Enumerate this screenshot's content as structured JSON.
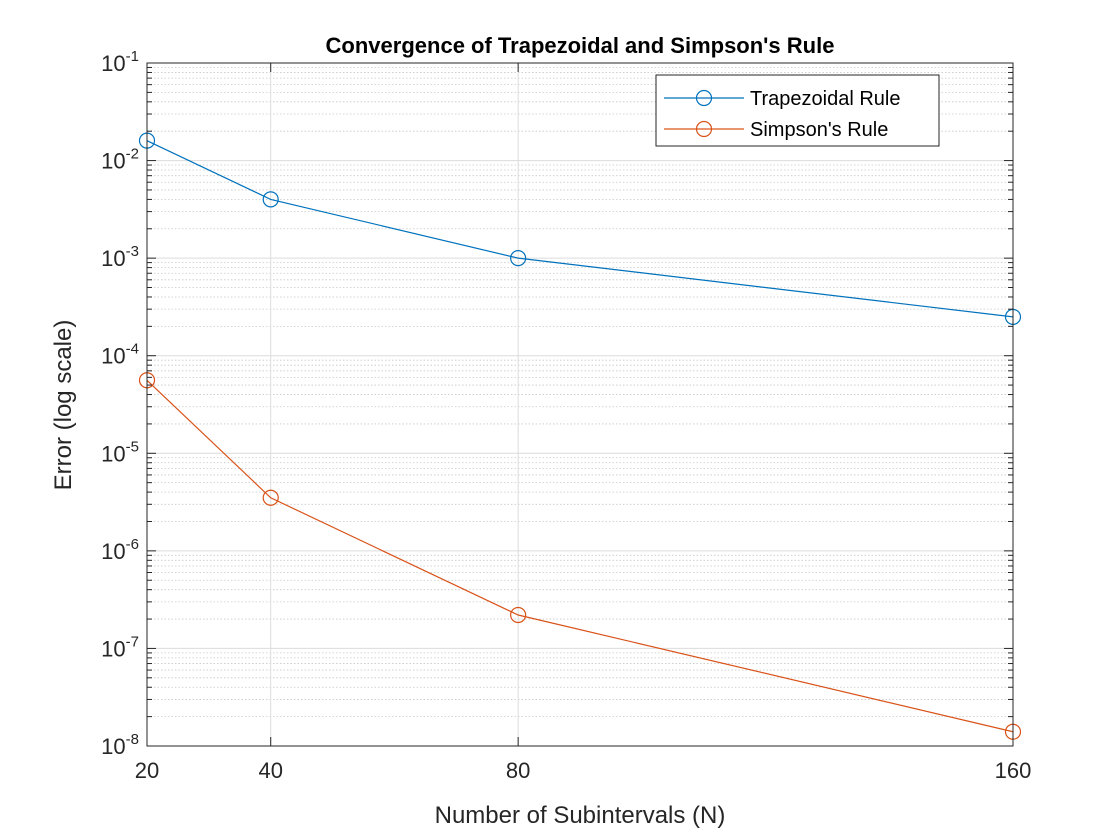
{
  "chart_data": {
    "type": "line",
    "title": "Convergence of Trapezoidal and Simpson's Rule",
    "xlabel": "Number of Subintervals (N)",
    "ylabel": "Error (log scale)",
    "x_scale": "linear",
    "y_scale": "log",
    "xlim": [
      20,
      160
    ],
    "ylim": [
      1e-08,
      0.1
    ],
    "x_ticks": [
      20,
      40,
      80,
      160
    ],
    "y_tick_exponents": [
      -8,
      -7,
      -6,
      -5,
      -4,
      -3,
      -2,
      -1
    ],
    "grid": true,
    "minor_grid": true,
    "legend_position": "top-right",
    "x": [
      20,
      40,
      80,
      160
    ],
    "series": [
      {
        "name": "Trapezoidal Rule",
        "color": "#0072BD",
        "marker": "circle",
        "values": [
          0.016,
          0.004,
          0.001,
          0.00025
        ]
      },
      {
        "name": "Simpson's Rule",
        "color": "#D95319",
        "marker": "circle",
        "values": [
          5.6e-05,
          3.5e-06,
          2.2e-07,
          1.4e-08
        ]
      }
    ]
  }
}
